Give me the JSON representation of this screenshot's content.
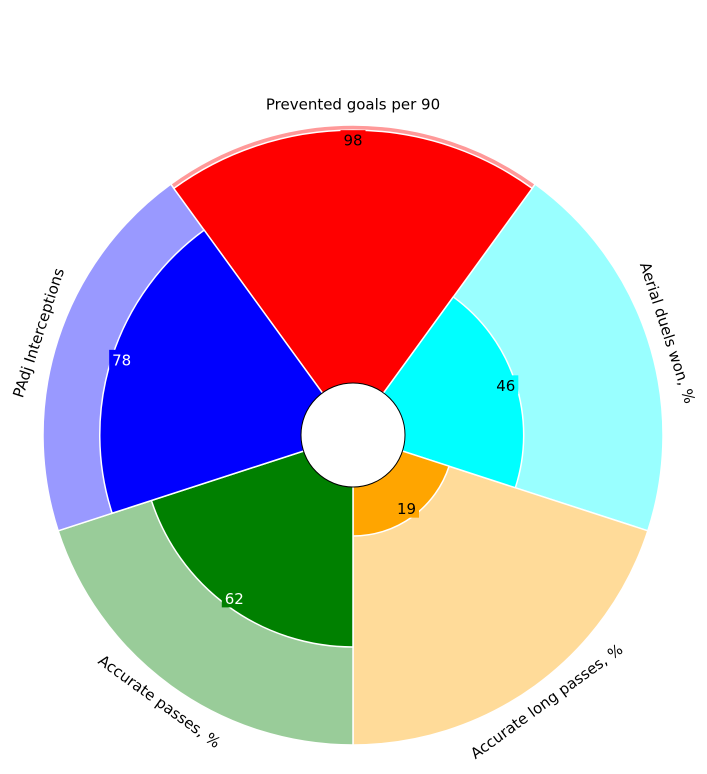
{
  "chart_data": {
    "type": "radial-bar",
    "title": "",
    "categories": [
      "Prevented goals per 90",
      "Aerial duels won, %",
      "Accurate long passes, %",
      "Accurate passes, %",
      "PAdj Interceptions"
    ],
    "values": [
      98,
      46,
      19,
      62,
      78
    ],
    "rlim": [
      0,
      100
    ],
    "colors": {
      "fill": [
        "#ff0000",
        "#00ffff",
        "#ffa500",
        "#008000",
        "#0000ff"
      ],
      "background": [
        "#ff9999",
        "#99ffff",
        "#ffdb99",
        "#99cc99",
        "#9999ff"
      ],
      "value_text": [
        "#000000",
        "#000000",
        "#000000",
        "#ffffff",
        "#ffffff"
      ]
    },
    "center_hole": true,
    "grid": false,
    "legend": "none"
  }
}
